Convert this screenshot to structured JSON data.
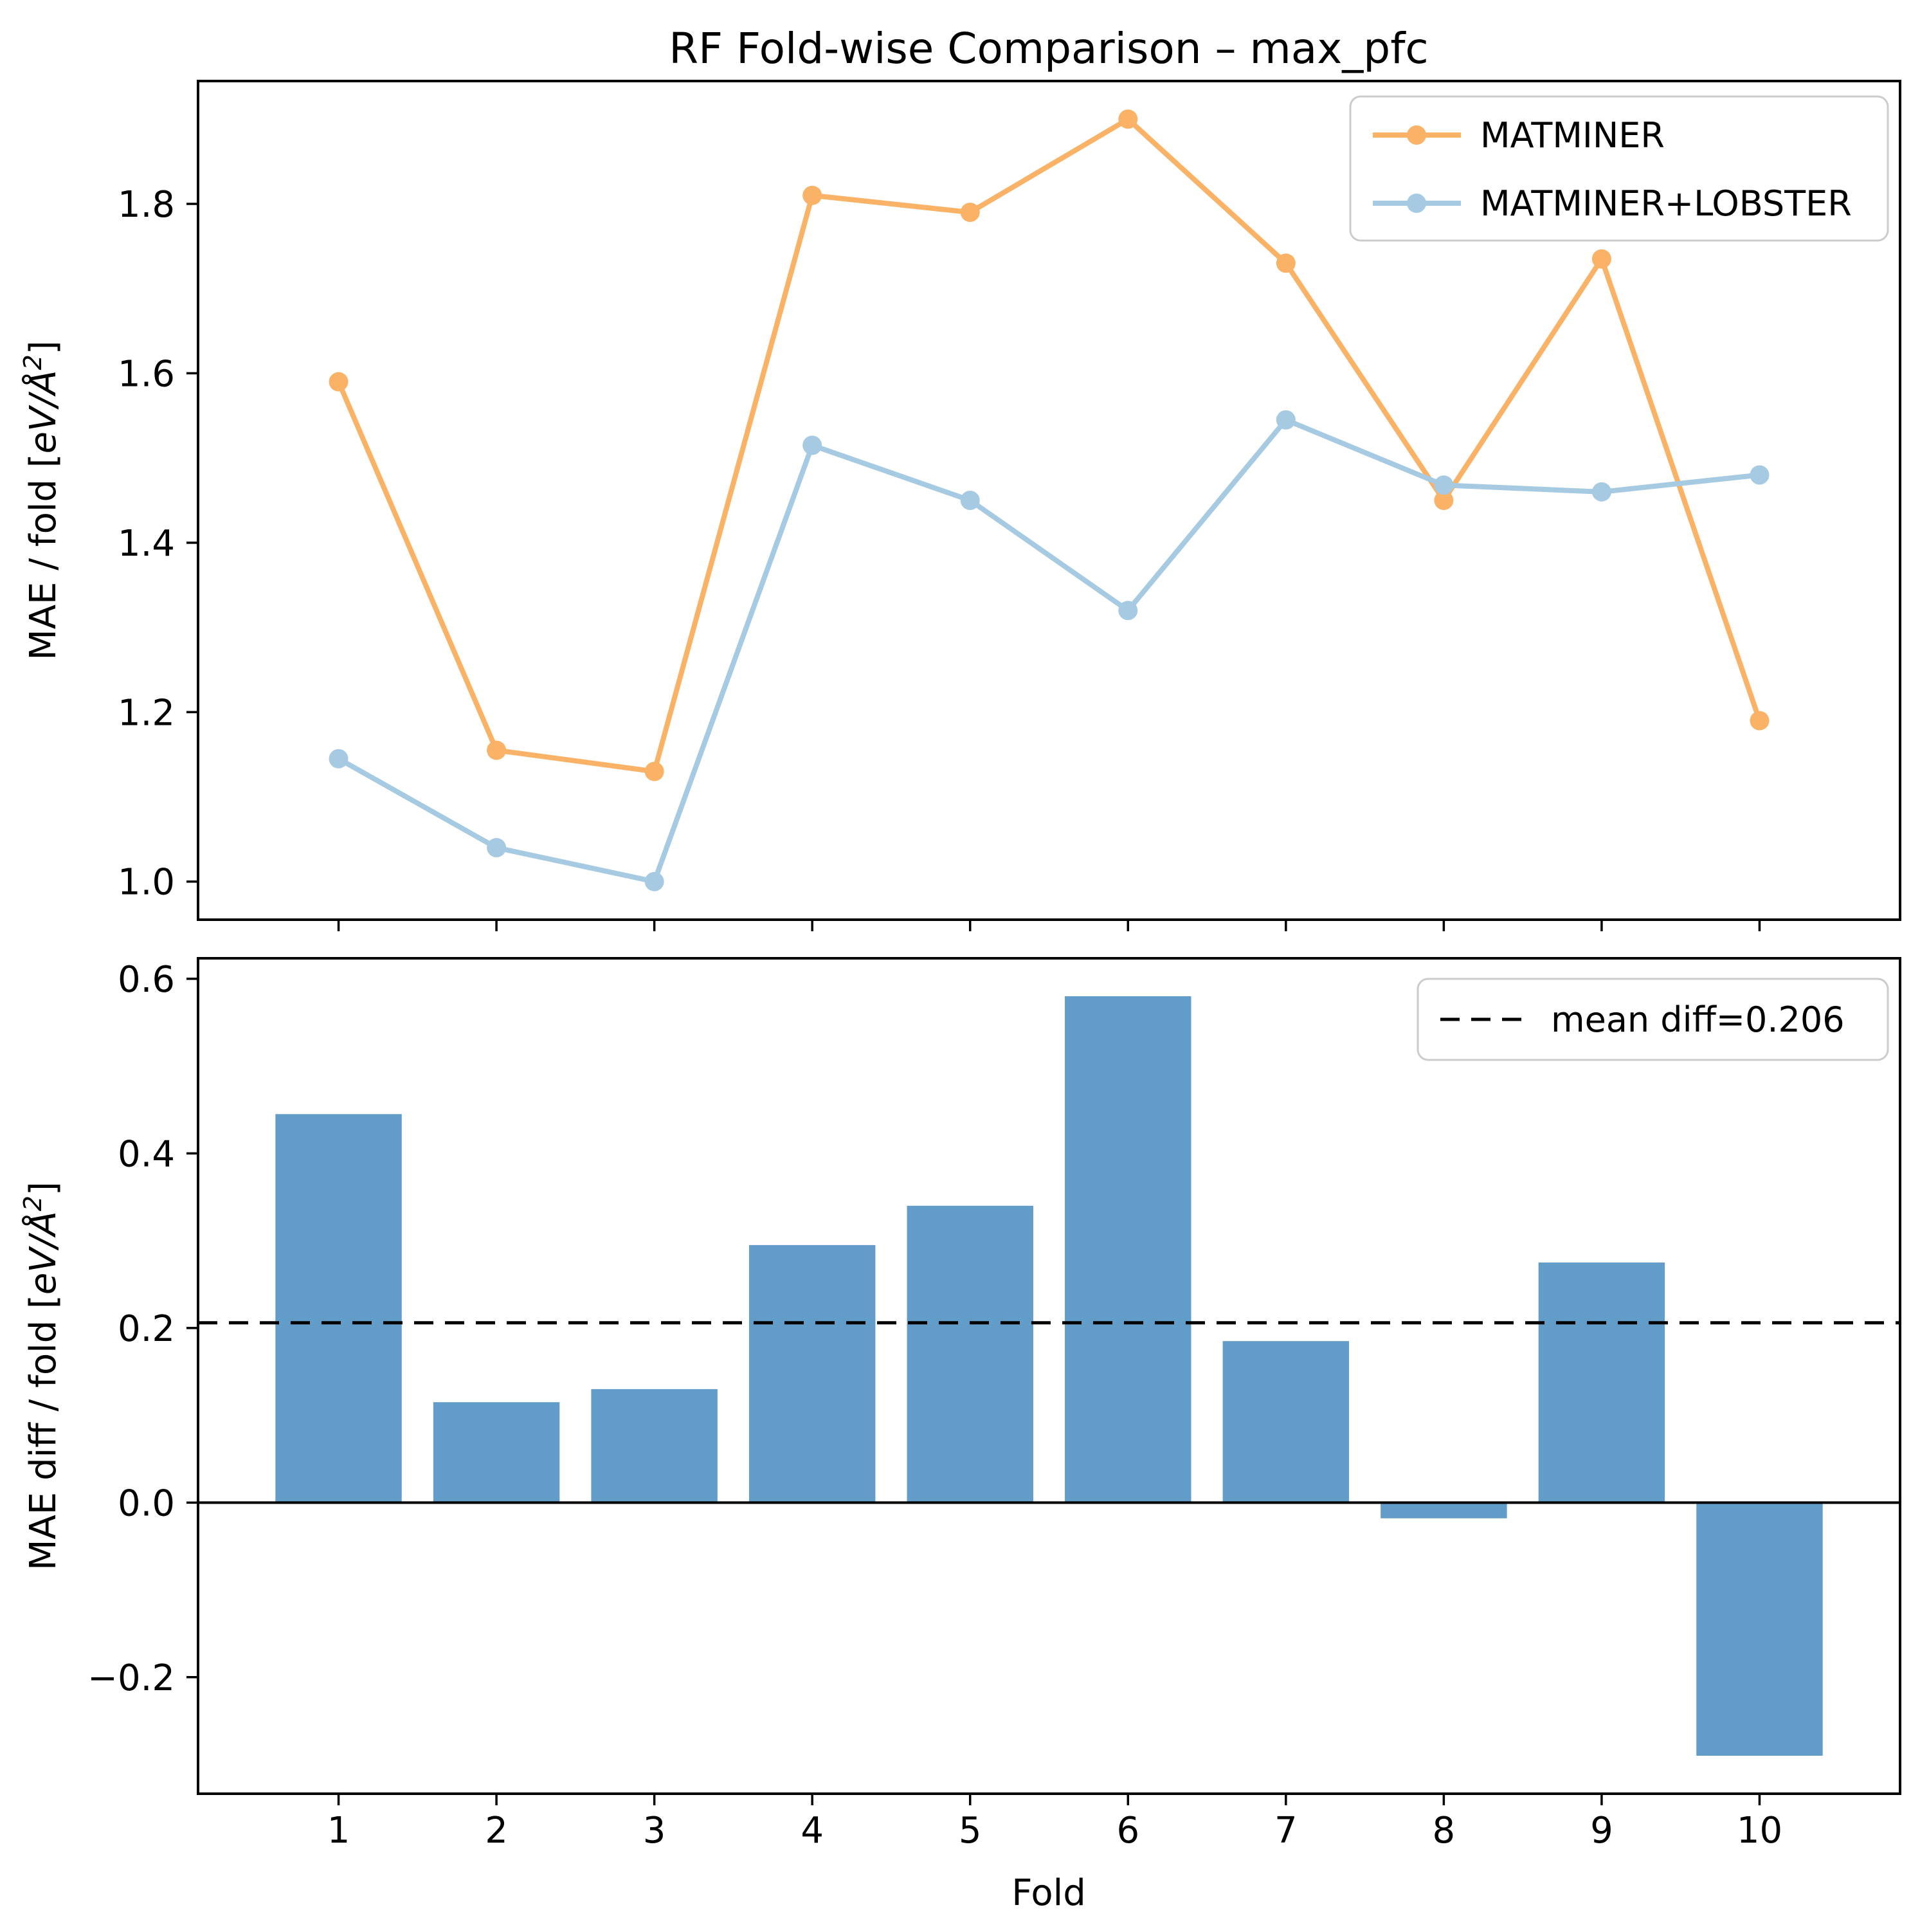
{
  "figure_title": "RF Fold-wise Comparison – max_pfc",
  "chart_data": [
    {
      "id": "mae-per-fold",
      "type": "line",
      "title": "RF Fold-wise Comparison – max_pfc",
      "xlabel": "",
      "ylabel": "MAE / fold [eV/Å²]",
      "x": [
        1,
        2,
        3,
        4,
        5,
        6,
        7,
        8,
        9,
        10
      ],
      "series": [
        {
          "name": "MATMINER",
          "color": "#FAB267",
          "values": [
            1.59,
            1.155,
            1.13,
            1.81,
            1.79,
            1.9,
            1.73,
            1.45,
            1.735,
            1.19
          ]
        },
        {
          "name": "MATMINER+LOBSTER",
          "color": "#A5CAE1",
          "values": [
            1.145,
            1.04,
            1.0,
            1.515,
            1.45,
            1.32,
            1.545,
            1.468,
            1.46,
            1.48
          ]
        }
      ],
      "xlim": [
        0.11,
        10.89
      ],
      "ylim": [
        0.955,
        1.945
      ],
      "yticks": [
        1.0,
        1.2,
        1.4,
        1.6,
        1.8
      ],
      "legend_position": "upper right",
      "grid": false,
      "marker": "o"
    },
    {
      "id": "mae-diff-per-fold",
      "type": "bar",
      "title": "",
      "xlabel": "Fold",
      "ylabel": "MAE diff / fold [eV/Å²]",
      "categories": [
        1,
        2,
        3,
        4,
        5,
        6,
        7,
        8,
        9,
        10
      ],
      "values": [
        0.445,
        0.115,
        0.13,
        0.295,
        0.34,
        0.58,
        0.185,
        -0.018,
        0.275,
        -0.29
      ],
      "bar_color": "#619DC8",
      "bar_width": 0.8,
      "xlim": [
        0.11,
        10.89
      ],
      "ylim": [
        -0.3335,
        0.6235
      ],
      "yticks": [
        0.6,
        0.4,
        0.2,
        0.0,
        -0.2
      ],
      "zero_line": true,
      "mean_line": {
        "value": 0.206,
        "label": "mean diff=0.206",
        "color": "#000000",
        "style": "dashed"
      },
      "legend_position": "upper right",
      "grid": false
    }
  ],
  "colors": {
    "series_matminer": "#FAB267",
    "series_matminer_lobster": "#A5CAE1",
    "bars": "#619DC8",
    "axes": "#000000",
    "legend_frame": "#cccccc",
    "background": "#ffffff"
  }
}
